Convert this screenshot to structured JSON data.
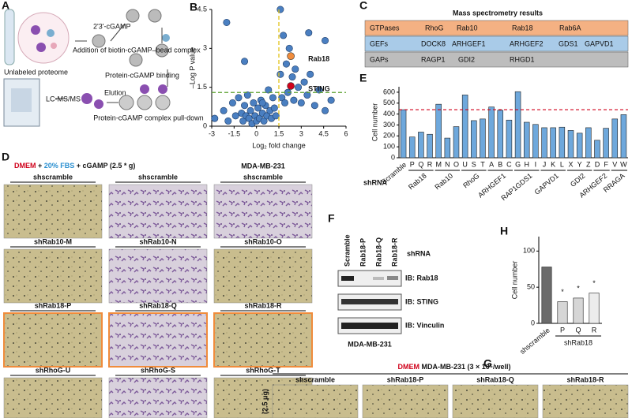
{
  "schematic": {
    "letter": "A",
    "proteome": "Unlabeled proteome",
    "ligand": "2'3'-cGAMP",
    "addition": "Addition of biotin-cGAMP–bead complex",
    "binding": "Protein-cGAMP binding",
    "lcms": "LC-MS/MS",
    "elution": "Elution",
    "pulldown": "Protein-cGAMP complex pull-down"
  },
  "chart_data": [
    {
      "letter": "B",
      "type": "scatter",
      "xlabel": "Log₂ fold change",
      "ylabel": "–Log P value",
      "xlim": [
        -3,
        6
      ],
      "xticks": [
        -3,
        -1.5,
        0,
        1.5,
        3,
        4.5,
        6
      ],
      "ylim": [
        0,
        4.5
      ],
      "yticks": [
        0,
        1.5,
        3,
        4.5
      ],
      "color": "#4a7fc1",
      "threshold_x": 1.5,
      "threshold_y": 1.3,
      "x": [
        -2.8,
        -2.2,
        -1.9,
        -1.6,
        -1.4,
        -1.2,
        -1.0,
        -0.9,
        -0.8,
        -0.7,
        -0.6,
        -0.5,
        -0.4,
        -0.3,
        -0.2,
        -0.1,
        0.0,
        0.1,
        0.2,
        0.3,
        0.4,
        0.5,
        0.6,
        0.7,
        0.8,
        0.9,
        1.0,
        1.1,
        1.2,
        1.3,
        1.6,
        1.7,
        1.8,
        1.9,
        2.0,
        2.1,
        2.2,
        2.4,
        2.5,
        2.6,
        2.8,
        3.0,
        3.2,
        3.4,
        3.6,
        3.9,
        4.2,
        4.6,
        5.0,
        -2.0,
        1.6,
        4.6,
        3.5,
        0.4,
        -0.8
      ],
      "y": [
        0.3,
        0.6,
        0.2,
        0.9,
        0.4,
        1.1,
        0.5,
        0.2,
        0.8,
        0.4,
        1.2,
        0.3,
        0.6,
        0.1,
        0.9,
        0.4,
        0.2,
        0.7,
        0.3,
        1.0,
        0.5,
        0.2,
        0.8,
        0.4,
        1.4,
        0.6,
        0.3,
        1.1,
        0.7,
        0.4,
        2.0,
        1.1,
        3.5,
        0.9,
        2.4,
        1.3,
        3.0,
        1.9,
        1.0,
        2.2,
        1.5,
        0.9,
        1.7,
        1.2,
        2.0,
        0.8,
        1.4,
        0.6,
        1.0,
        4.0,
        4.5,
        3.3,
        3.6,
        0.9,
        2.5
      ],
      "highlights": [
        {
          "name": "Rab18",
          "x": 2.3,
          "y": 2.7,
          "color": "#f08c3c"
        },
        {
          "name": "STING",
          "x": 2.3,
          "y": 1.55,
          "color": "#d0021b"
        }
      ]
    },
    {
      "letter": "E",
      "type": "bar",
      "ylabel": "Cell number",
      "xlabel": "shRNA",
      "ylim": [
        0,
        650
      ],
      "yticks": [
        0,
        100,
        200,
        300,
        400,
        500,
        600
      ],
      "color": "#6ea8dc",
      "reference": 440,
      "categories": [
        "Scramble",
        "P",
        "Q",
        "R",
        "M",
        "N",
        "O",
        "U",
        "S",
        "T",
        "A",
        "B",
        "C",
        "G",
        "H",
        "I",
        "J",
        "K",
        "L",
        "X",
        "Y",
        "Z",
        "D",
        "F",
        "V",
        "W"
      ],
      "values": [
        440,
        190,
        235,
        215,
        490,
        180,
        285,
        575,
        340,
        355,
        465,
        435,
        345,
        605,
        325,
        305,
        275,
        275,
        280,
        250,
        225,
        275,
        160,
        270,
        355,
        395
      ],
      "groups": [
        {
          "name": "Rab18",
          "members": [
            "P",
            "Q",
            "R"
          ],
          "highlight": true
        },
        {
          "name": "Rab10",
          "members": [
            "M",
            "N",
            "O"
          ]
        },
        {
          "name": "RhoG",
          "members": [
            "U",
            "S",
            "T"
          ]
        },
        {
          "name": "ARHGEF1",
          "members": [
            "A",
            "B",
            "C"
          ]
        },
        {
          "name": "RAP1GDS1",
          "members": [
            "G",
            "H",
            "I"
          ]
        },
        {
          "name": "GAPVD1",
          "members": [
            "J",
            "K",
            "L"
          ]
        },
        {
          "name": "GDI2",
          "members": [
            "X",
            "Y",
            "Z"
          ]
        },
        {
          "name": "ARHGEF2",
          "members": [
            "D",
            "F"
          ]
        },
        {
          "name": "RRAGA",
          "members": [
            "V",
            "W"
          ]
        }
      ]
    },
    {
      "letter": "H",
      "type": "bar",
      "ylabel": "Cell number",
      "ylim": [
        0,
        120
      ],
      "yticks": [
        0,
        50,
        100
      ],
      "categories": [
        "shscramble",
        "P",
        "Q",
        "R"
      ],
      "values": [
        78,
        30,
        35,
        42
      ],
      "colors": [
        "#6b6b6b",
        "#d6d6d6",
        "#d6d6d6",
        "#ececec"
      ],
      "groups": [
        {
          "name": "shRab18",
          "members": [
            "P",
            "Q",
            "R"
          ]
        }
      ],
      "annotations": [
        {
          "text": "*",
          "category": "P"
        },
        {
          "text": "*",
          "category": "Q"
        },
        {
          "text": "*",
          "category": "R"
        }
      ]
    }
  ],
  "table": {
    "letter": "C",
    "title": "Mass spectrometry results",
    "rows": [
      {
        "head": "GTPases",
        "items": [
          "RhoG",
          "Rab10",
          "Rab18",
          "Rab6A"
        ]
      },
      {
        "head": "GEFs",
        "items": [
          "DOCK8",
          "ARHGEF1",
          "ARHGEF2",
          "GDS1",
          "GAPVD1"
        ]
      },
      {
        "head": "GAPs",
        "items": [
          "RAGP1",
          "GDI2",
          "RHGD1"
        ]
      }
    ]
  },
  "micrographs_d": {
    "letter": "D",
    "title": [
      "DMEM",
      " + ",
      "20% FBS",
      " + cGAMP (2.5 * g)"
    ],
    "cell_line": "MDA-MB-231",
    "rows": [
      {
        "labels": [
          "shscramble",
          "shscramble",
          "shscramble"
        ]
      },
      {
        "labels": [
          "shRab10-M",
          "shRab10-N",
          "shRab10-O"
        ]
      },
      {
        "labels": [
          "shRab18-P",
          "shRab18-Q",
          "shRab18-R"
        ],
        "highlight": true
      },
      {
        "labels": [
          "shRhoG-U",
          "shRhoG-S",
          "shRhoG-T"
        ]
      }
    ]
  },
  "western": {
    "letter": "F",
    "lanes": [
      "Scramble",
      "Rab18-P",
      "Rab18-Q",
      "Rab18-R"
    ],
    "lanes_title": "shRNA",
    "blots": [
      "IB: Rab18",
      "IB: STING",
      "IB: Vinculin"
    ],
    "cell_line": "MDA-MB-231"
  },
  "micrographs_g": {
    "letter": "G",
    "title": [
      "DMEM",
      " MDA-MB-231 (3 × 10⁵/well)"
    ],
    "columns": [
      "shscramble",
      "shRab18-P",
      "shRab18-Q",
      "shRab18-R"
    ],
    "row_label": "(2.5 μg)"
  }
}
